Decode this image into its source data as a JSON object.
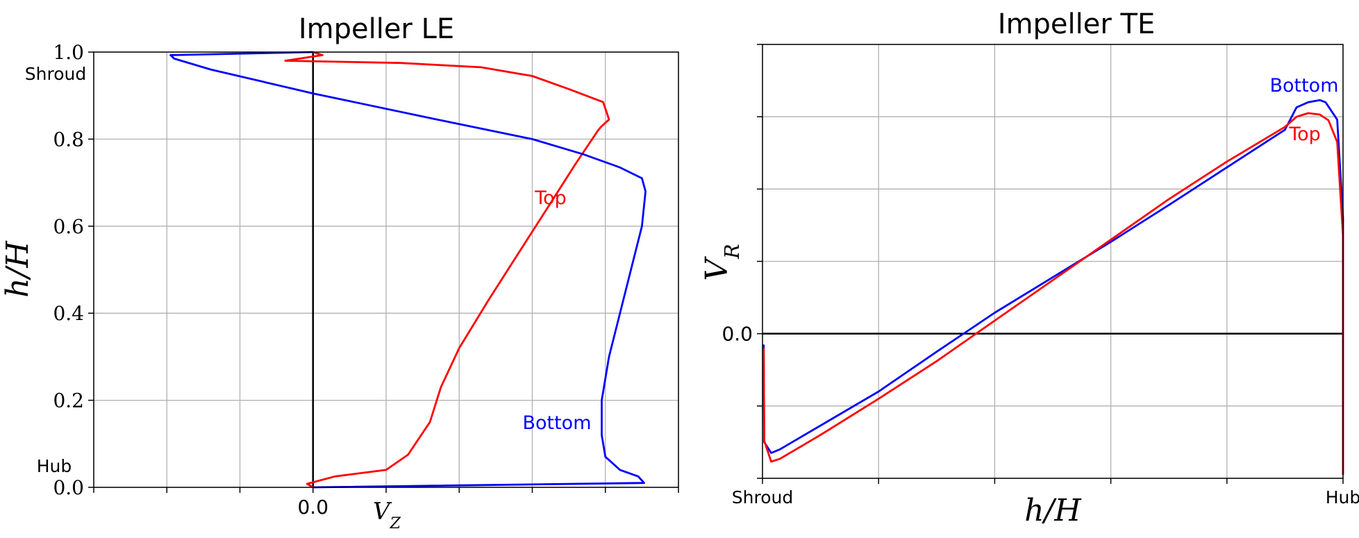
{
  "colors": {
    "top": "#ff0000",
    "bottom": "#0000ff",
    "zero_line": "#000000",
    "grid": "#b0b0b0",
    "axes": "#000000"
  },
  "chart_data": [
    {
      "type": "line",
      "title": "Impeller LE",
      "xlabel": "V_Z",
      "ylabel": "h/H",
      "xlim": [
        -3,
        5
      ],
      "ylim": [
        0,
        1
      ],
      "x_ticks": [
        -3,
        -2,
        -1,
        0,
        1,
        2,
        3,
        4,
        5
      ],
      "x_tick_labels": [
        "",
        "",
        "",
        "0.0",
        "",
        "",
        "",
        "",
        ""
      ],
      "y_ticks": [
        0,
        0.2,
        0.4,
        0.6,
        0.8,
        1.0
      ],
      "y_tick_labels": [
        "0.0",
        "0.2",
        "0.4",
        "0.6",
        "0.8",
        "1.0"
      ],
      "grid": true,
      "zero_line": "vertical",
      "annotations": {
        "shroud": "Shroud",
        "hub": "Hub",
        "top_label": "Top",
        "bottom_label": "Bottom"
      },
      "series": [
        {
          "name": "Top",
          "color": "#ff0000",
          "points": [
            [
              0.0,
              1.0
            ],
            [
              0.13,
              0.993
            ],
            [
              -0.38,
              0.98
            ],
            [
              1.2,
              0.975
            ],
            [
              2.3,
              0.965
            ],
            [
              3.0,
              0.945
            ],
            [
              3.5,
              0.915
            ],
            [
              3.97,
              0.885
            ],
            [
              4.05,
              0.845
            ],
            [
              3.94,
              0.828
            ],
            [
              3.9,
              0.82
            ],
            [
              3.6,
              0.745
            ],
            [
              3.2,
              0.64
            ],
            [
              2.8,
              0.535
            ],
            [
              2.4,
              0.43
            ],
            [
              2.0,
              0.32
            ],
            [
              1.75,
              0.23
            ],
            [
              1.6,
              0.15
            ],
            [
              1.3,
              0.075
            ],
            [
              1.0,
              0.04
            ],
            [
              0.3,
              0.025
            ],
            [
              -0.08,
              0.008
            ],
            [
              0.0,
              0.0
            ]
          ]
        },
        {
          "name": "Bottom",
          "color": "#0000ff",
          "points": [
            [
              0.0,
              1.0
            ],
            [
              -1.95,
              0.993
            ],
            [
              -1.9,
              0.985
            ],
            [
              -1.4,
              0.96
            ],
            [
              0.0,
              0.905
            ],
            [
              1.7,
              0.845
            ],
            [
              3.0,
              0.8
            ],
            [
              3.7,
              0.765
            ],
            [
              4.2,
              0.735
            ],
            [
              4.5,
              0.71
            ],
            [
              4.55,
              0.68
            ],
            [
              4.5,
              0.6
            ],
            [
              4.35,
              0.5
            ],
            [
              4.2,
              0.4
            ],
            [
              4.05,
              0.3
            ],
            [
              3.95,
              0.2
            ],
            [
              3.95,
              0.12
            ],
            [
              4.0,
              0.07
            ],
            [
              4.2,
              0.04
            ],
            [
              4.45,
              0.025
            ],
            [
              4.53,
              0.01
            ],
            [
              0.0,
              0.0
            ]
          ]
        }
      ]
    },
    {
      "type": "line",
      "title": "Impeller TE",
      "xlabel": "h/H",
      "ylabel": "V_R",
      "xlim": [
        0,
        1
      ],
      "ylim": [
        -2,
        4
      ],
      "x_ticks": [
        0,
        0.2,
        0.4,
        0.6,
        0.8,
        1.0
      ],
      "x_tick_labels": [
        "Shroud",
        "",
        "",
        "",
        "",
        "Hub"
      ],
      "y_ticks": [
        -2,
        -1,
        0,
        1,
        2,
        3,
        4
      ],
      "y_tick_labels": [
        "",
        "",
        "0.0",
        "",
        "",
        "",
        ""
      ],
      "grid": true,
      "zero_line": "horizontal",
      "annotations": {
        "top_label": "Top",
        "bottom_label": "Bottom"
      },
      "series": [
        {
          "name": "Bottom",
          "color": "#0000ff",
          "points": [
            [
              0.002,
              -0.15
            ],
            [
              0.003,
              -1.5
            ],
            [
              0.015,
              -1.65
            ],
            [
              0.03,
              -1.6
            ],
            [
              0.1,
              -1.27
            ],
            [
              0.2,
              -0.8
            ],
            [
              0.3,
              -0.25
            ],
            [
              0.4,
              0.29
            ],
            [
              0.5,
              0.78
            ],
            [
              0.6,
              1.27
            ],
            [
              0.7,
              1.78
            ],
            [
              0.8,
              2.3
            ],
            [
              0.9,
              2.82
            ],
            [
              0.92,
              3.13
            ],
            [
              0.94,
              3.2
            ],
            [
              0.96,
              3.23
            ],
            [
              0.97,
              3.2
            ],
            [
              0.99,
              2.96
            ],
            [
              1.0,
              1.6
            ],
            [
              1.0,
              -1.95
            ]
          ]
        },
        {
          "name": "Top",
          "color": "#ff0000",
          "points": [
            [
              0.002,
              -0.2
            ],
            [
              0.003,
              -1.48
            ],
            [
              0.015,
              -1.77
            ],
            [
              0.03,
              -1.73
            ],
            [
              0.1,
              -1.4
            ],
            [
              0.2,
              -0.9
            ],
            [
              0.3,
              -0.38
            ],
            [
              0.4,
              0.18
            ],
            [
              0.5,
              0.74
            ],
            [
              0.6,
              1.3
            ],
            [
              0.7,
              1.86
            ],
            [
              0.8,
              2.38
            ],
            [
              0.9,
              2.86
            ],
            [
              0.92,
              3.0
            ],
            [
              0.94,
              3.05
            ],
            [
              0.96,
              3.03
            ],
            [
              0.975,
              2.95
            ],
            [
              0.99,
              2.65
            ],
            [
              1.0,
              1.35
            ],
            [
              1.0,
              -1.95
            ]
          ]
        }
      ]
    }
  ]
}
